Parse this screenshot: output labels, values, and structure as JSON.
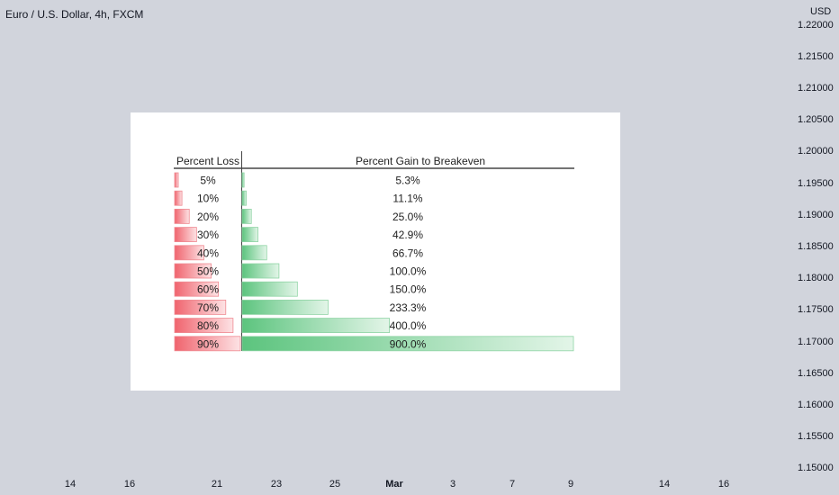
{
  "header": {
    "title": "Euro / U.S. Dollar, 4h, FXCM"
  },
  "price_axis": {
    "unit": "USD",
    "labels": [
      "1.22000",
      "1.21500",
      "1.21000",
      "1.20500",
      "1.20000",
      "1.19500",
      "1.19000",
      "1.18500",
      "1.18000",
      "1.17500",
      "1.17000",
      "1.16500",
      "1.16000",
      "1.15500",
      "1.15000"
    ]
  },
  "time_axis": {
    "labels": [
      "14",
      "16",
      "21",
      "23",
      "25",
      "Mar",
      "3",
      "7",
      "9",
      "14",
      "16"
    ]
  },
  "colors": {
    "background": "#d1d4dc",
    "loss_red": "#f0646e",
    "gain_green": "#5cc47e"
  },
  "chart_data": {
    "type": "table",
    "columns": [
      "Percent Loss",
      "Percent Gain to Breakeven"
    ],
    "rows": [
      {
        "loss_label": "5%",
        "loss": 5,
        "gain_label": "5.3%",
        "gain": 5.3
      },
      {
        "loss_label": "10%",
        "loss": 10,
        "gain_label": "11.1%",
        "gain": 11.1
      },
      {
        "loss_label": "20%",
        "loss": 20,
        "gain_label": "25.0%",
        "gain": 25.0
      },
      {
        "loss_label": "30%",
        "loss": 30,
        "gain_label": "42.9%",
        "gain": 42.9
      },
      {
        "loss_label": "40%",
        "loss": 40,
        "gain_label": "66.7%",
        "gain": 66.7
      },
      {
        "loss_label": "50%",
        "loss": 50,
        "gain_label": "100.0%",
        "gain": 100.0
      },
      {
        "loss_label": "60%",
        "loss": 60,
        "gain_label": "150.0%",
        "gain": 150.0
      },
      {
        "loss_label": "70%",
        "loss": 70,
        "gain_label": "233.3%",
        "gain": 233.3
      },
      {
        "loss_label": "80%",
        "loss": 80,
        "gain_label": "400.0%",
        "gain": 400.0
      },
      {
        "loss_label": "90%",
        "loss": 90,
        "gain_label": "900.0%",
        "gain": 900.0
      }
    ],
    "loss_max": 90,
    "gain_max": 900
  }
}
